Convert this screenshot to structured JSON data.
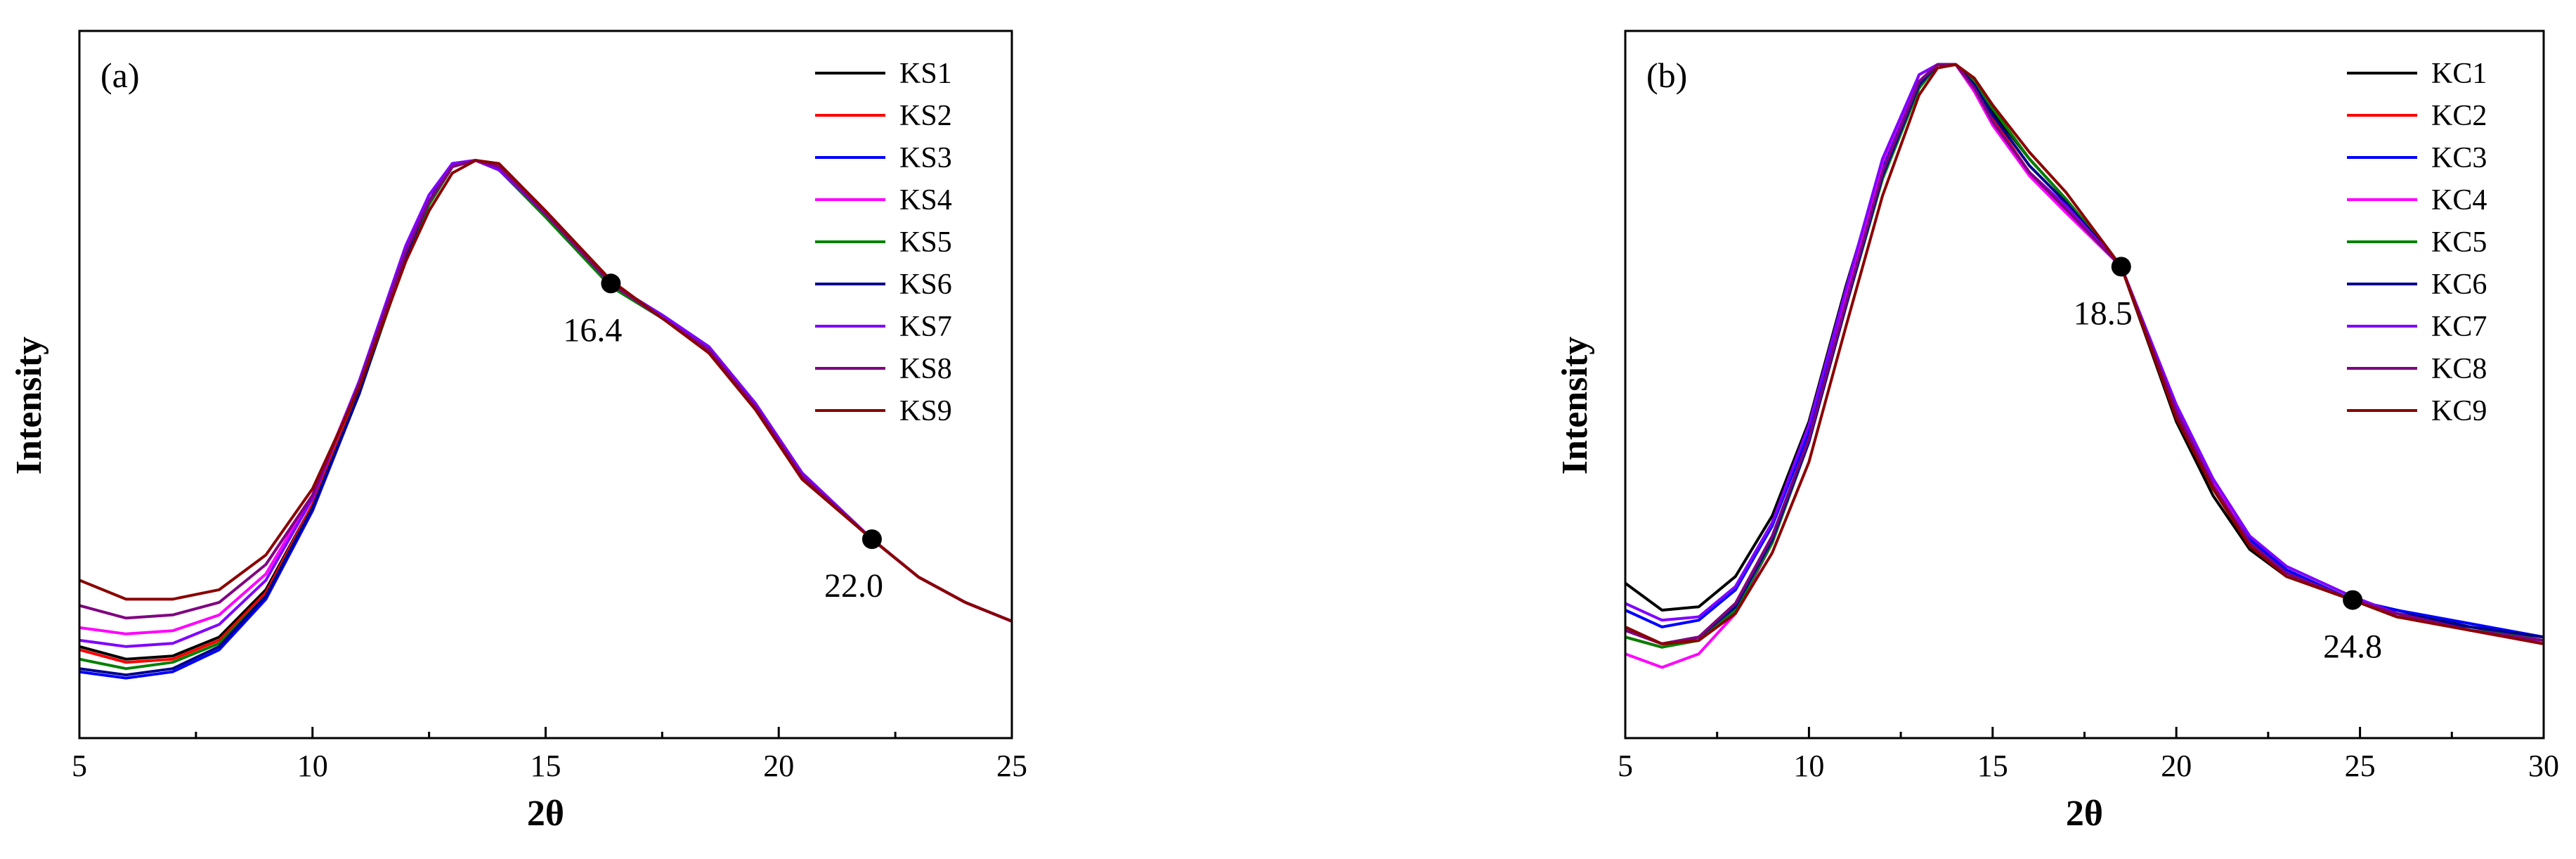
{
  "chart_data": [
    {
      "type": "line",
      "panel_label": "(a)",
      "xlabel": "2θ",
      "ylabel": "Intensity",
      "xlim": [
        5,
        25
      ],
      "ylim": [
        0,
        1
      ],
      "xticks": [
        5,
        10,
        15,
        20,
        25
      ],
      "y_tick_labels": "none",
      "grid": false,
      "legend_position": "top-right",
      "series": [
        {
          "name": "KS1",
          "color": "#000000",
          "x": [
            5,
            6,
            7,
            8,
            9,
            10,
            11,
            12,
            12.5,
            13,
            13.5,
            14,
            15,
            16.4,
            17.5,
            18.5,
            19.5,
            20.5,
            22,
            23,
            24,
            25
          ],
          "y": [
            0.145,
            0.125,
            0.13,
            0.16,
            0.235,
            0.37,
            0.55,
            0.76,
            0.845,
            0.905,
            0.915,
            0.9,
            0.83,
            0.72,
            0.665,
            0.615,
            0.525,
            0.415,
            0.315,
            0.255,
            0.215,
            0.185
          ]
        },
        {
          "name": "KS2",
          "color": "#ff0000",
          "x": [
            5,
            6,
            7,
            8,
            9,
            10,
            11,
            12,
            12.5,
            13,
            13.5,
            14,
            15,
            16.4,
            17.5,
            18.5,
            19.5,
            20.5,
            22,
            23,
            24,
            25
          ],
          "y": [
            0.14,
            0.12,
            0.125,
            0.155,
            0.23,
            0.37,
            0.55,
            0.76,
            0.845,
            0.905,
            0.915,
            0.9,
            0.83,
            0.72,
            0.665,
            0.615,
            0.525,
            0.415,
            0.315,
            0.255,
            0.215,
            0.185
          ]
        },
        {
          "name": "KS3",
          "color": "#0000ff",
          "x": [
            5,
            6,
            7,
            8,
            9,
            10,
            11,
            12,
            12.5,
            13,
            13.5,
            14,
            15,
            16.4,
            17.5,
            18.5,
            19.5,
            20.5,
            22,
            23,
            24,
            25
          ],
          "y": [
            0.105,
            0.095,
            0.105,
            0.14,
            0.22,
            0.36,
            0.545,
            0.765,
            0.85,
            0.91,
            0.915,
            0.9,
            0.83,
            0.72,
            0.67,
            0.62,
            0.53,
            0.42,
            0.315,
            0.255,
            0.215,
            0.185
          ]
        },
        {
          "name": "KS4",
          "color": "#ff00ff",
          "x": [
            5,
            6,
            7,
            8,
            9,
            10,
            11,
            12,
            12.5,
            13,
            13.5,
            14,
            15,
            16.4,
            17.5,
            18.5,
            19.5,
            20.5,
            22,
            23,
            24,
            25
          ],
          "y": [
            0.175,
            0.165,
            0.17,
            0.195,
            0.26,
            0.385,
            0.565,
            0.78,
            0.86,
            0.91,
            0.915,
            0.9,
            0.83,
            0.72,
            0.665,
            0.615,
            0.525,
            0.415,
            0.315,
            0.255,
            0.215,
            0.185
          ]
        },
        {
          "name": "KS5",
          "color": "#008000",
          "x": [
            5,
            6,
            7,
            8,
            9,
            10,
            11,
            12,
            12.5,
            13,
            13.5,
            14,
            15,
            16.4,
            17.5,
            18.5,
            19.5,
            20.5,
            22,
            23,
            24,
            25
          ],
          "y": [
            0.125,
            0.11,
            0.12,
            0.15,
            0.225,
            0.365,
            0.545,
            0.76,
            0.845,
            0.905,
            0.915,
            0.9,
            0.825,
            0.715,
            0.665,
            0.615,
            0.525,
            0.415,
            0.315,
            0.255,
            0.215,
            0.185
          ]
        },
        {
          "name": "KS6",
          "color": "#00008b",
          "x": [
            5,
            6,
            7,
            8,
            9,
            10,
            11,
            12,
            12.5,
            13,
            13.5,
            14,
            15,
            16.4,
            17.5,
            18.5,
            19.5,
            20.5,
            22,
            23,
            24,
            25
          ],
          "y": [
            0.11,
            0.1,
            0.11,
            0.145,
            0.225,
            0.365,
            0.545,
            0.765,
            0.85,
            0.91,
            0.915,
            0.9,
            0.83,
            0.72,
            0.67,
            0.62,
            0.53,
            0.42,
            0.315,
            0.255,
            0.215,
            0.185
          ]
        },
        {
          "name": "KS7",
          "color": "#8000ff",
          "x": [
            5,
            6,
            7,
            8,
            9,
            10,
            11,
            12,
            12.5,
            13,
            13.5,
            14,
            15,
            16.4,
            17.5,
            18.5,
            19.5,
            20.5,
            22,
            23,
            24,
            25
          ],
          "y": [
            0.155,
            0.145,
            0.15,
            0.18,
            0.25,
            0.38,
            0.565,
            0.78,
            0.86,
            0.91,
            0.915,
            0.9,
            0.83,
            0.72,
            0.67,
            0.62,
            0.53,
            0.42,
            0.315,
            0.255,
            0.215,
            0.185
          ]
        },
        {
          "name": "KS8",
          "color": "#800080",
          "x": [
            5,
            6,
            7,
            8,
            9,
            10,
            11,
            12,
            12.5,
            13,
            13.5,
            14,
            15,
            16.4,
            17.5,
            18.5,
            19.5,
            20.5,
            22,
            23,
            24,
            25
          ],
          "y": [
            0.21,
            0.19,
            0.195,
            0.215,
            0.275,
            0.385,
            0.56,
            0.77,
            0.85,
            0.905,
            0.915,
            0.905,
            0.83,
            0.72,
            0.665,
            0.615,
            0.525,
            0.415,
            0.315,
            0.255,
            0.215,
            0.185
          ]
        },
        {
          "name": "KS9",
          "color": "#8b0000",
          "x": [
            5,
            6,
            7,
            8,
            9,
            10,
            11,
            12,
            12.5,
            13,
            13.5,
            14,
            15,
            16.4,
            17.5,
            18.5,
            19.5,
            20.5,
            22,
            23,
            24,
            25
          ],
          "y": [
            0.25,
            0.22,
            0.22,
            0.235,
            0.29,
            0.395,
            0.555,
            0.755,
            0.835,
            0.895,
            0.915,
            0.91,
            0.835,
            0.725,
            0.665,
            0.61,
            0.52,
            0.41,
            0.315,
            0.255,
            0.215,
            0.185
          ]
        }
      ],
      "markers": [
        {
          "x": 16.4,
          "y": 0.72,
          "label": "16.4",
          "label_anchor": "below-left"
        },
        {
          "x": 22.0,
          "y": 0.315,
          "label": "22.0",
          "label_anchor": "below-left"
        }
      ]
    },
    {
      "type": "line",
      "panel_label": "(b)",
      "xlabel": "2θ",
      "ylabel": "Intensity",
      "xlim": [
        5,
        30
      ],
      "ylim": [
        0,
        1
      ],
      "xticks": [
        5,
        10,
        15,
        20,
        25,
        30
      ],
      "y_tick_labels": "none",
      "grid": false,
      "legend_position": "top-right",
      "series": [
        {
          "name": "KC1",
          "color": "#000000",
          "x": [
            5,
            6,
            7,
            8,
            9,
            10,
            11,
            12,
            13,
            13.5,
            14,
            14.5,
            15,
            16,
            17,
            18.5,
            20,
            21,
            22,
            23,
            24.8,
            26,
            28,
            30
          ],
          "y": [
            0.23,
            0.19,
            0.195,
            0.24,
            0.33,
            0.47,
            0.67,
            0.85,
            0.975,
            1.0,
            1.0,
            0.97,
            0.93,
            0.86,
            0.8,
            0.7,
            0.47,
            0.36,
            0.28,
            0.24,
            0.205,
            0.19,
            0.165,
            0.15
          ]
        },
        {
          "name": "KC2",
          "color": "#ff0000",
          "x": [
            5,
            6,
            7,
            8,
            9,
            10,
            11,
            12,
            13,
            13.5,
            14,
            14.5,
            15,
            16,
            17,
            18.5,
            20,
            21,
            22,
            23,
            24.8,
            26,
            28,
            30
          ],
          "y": [
            0.15,
            0.135,
            0.15,
            0.2,
            0.3,
            0.44,
            0.64,
            0.84,
            0.975,
            1.0,
            1.0,
            0.97,
            0.92,
            0.84,
            0.79,
            0.7,
            0.48,
            0.37,
            0.285,
            0.245,
            0.205,
            0.18,
            0.16,
            0.14
          ]
        },
        {
          "name": "KC3",
          "color": "#0000ff",
          "x": [
            5,
            6,
            7,
            8,
            9,
            10,
            11,
            12,
            13,
            13.5,
            14,
            14.5,
            15,
            16,
            17,
            18.5,
            20,
            21,
            22,
            23,
            24.8,
            26,
            28,
            30
          ],
          "y": [
            0.19,
            0.165,
            0.175,
            0.22,
            0.315,
            0.455,
            0.655,
            0.845,
            0.975,
            1.0,
            1.0,
            0.965,
            0.915,
            0.84,
            0.785,
            0.7,
            0.49,
            0.38,
            0.295,
            0.25,
            0.205,
            0.19,
            0.17,
            0.15
          ]
        },
        {
          "name": "KC4",
          "color": "#ff00ff",
          "x": [
            5,
            6,
            7,
            8,
            9,
            10,
            11,
            12,
            13,
            13.5,
            14,
            14.5,
            15,
            16,
            17,
            18.5,
            20,
            21,
            22,
            23,
            24.8,
            26,
            28,
            30
          ],
          "y": [
            0.125,
            0.105,
            0.125,
            0.185,
            0.29,
            0.44,
            0.65,
            0.855,
            0.985,
            1.0,
            1.0,
            0.96,
            0.91,
            0.835,
            0.78,
            0.7,
            0.49,
            0.38,
            0.29,
            0.245,
            0.205,
            0.185,
            0.16,
            0.14
          ]
        },
        {
          "name": "KC5",
          "color": "#008000",
          "x": [
            5,
            6,
            7,
            8,
            9,
            10,
            11,
            12,
            13,
            13.5,
            14,
            14.5,
            15,
            16,
            17,
            18.5,
            20,
            21,
            22,
            23,
            24.8,
            26,
            28,
            30
          ],
          "y": [
            0.15,
            0.135,
            0.145,
            0.19,
            0.29,
            0.44,
            0.64,
            0.83,
            0.965,
            1.0,
            1.0,
            0.975,
            0.935,
            0.86,
            0.8,
            0.7,
            0.48,
            0.37,
            0.29,
            0.245,
            0.205,
            0.18,
            0.165,
            0.145
          ]
        },
        {
          "name": "KC6",
          "color": "#00008b",
          "x": [
            5,
            6,
            7,
            8,
            9,
            10,
            11,
            12,
            13,
            13.5,
            14,
            14.5,
            15,
            16,
            17,
            18.5,
            20,
            21,
            22,
            23,
            24.8,
            26,
            28,
            30
          ],
          "y": [
            0.16,
            0.14,
            0.15,
            0.195,
            0.295,
            0.44,
            0.64,
            0.835,
            0.97,
            1.0,
            1.0,
            0.97,
            0.925,
            0.85,
            0.795,
            0.7,
            0.485,
            0.375,
            0.29,
            0.245,
            0.205,
            0.185,
            0.165,
            0.15
          ]
        },
        {
          "name": "KC7",
          "color": "#8000ff",
          "x": [
            5,
            6,
            7,
            8,
            9,
            10,
            11,
            12,
            13,
            13.5,
            14,
            14.5,
            15,
            16,
            17,
            18.5,
            20,
            21,
            22,
            23,
            24.8,
            26,
            28,
            30
          ],
          "y": [
            0.2,
            0.175,
            0.18,
            0.225,
            0.32,
            0.465,
            0.665,
            0.86,
            0.985,
            1.0,
            1.0,
            0.965,
            0.915,
            0.84,
            0.79,
            0.7,
            0.495,
            0.385,
            0.3,
            0.255,
            0.21,
            0.185,
            0.16,
            0.145
          ]
        },
        {
          "name": "KC8",
          "color": "#800080",
          "x": [
            5,
            6,
            7,
            8,
            9,
            10,
            11,
            12,
            13,
            13.5,
            14,
            14.5,
            15,
            16,
            17,
            18.5,
            20,
            21,
            22,
            23,
            24.8,
            26,
            28,
            30
          ],
          "y": [
            0.16,
            0.14,
            0.15,
            0.2,
            0.3,
            0.445,
            0.645,
            0.84,
            0.975,
            1.0,
            1.0,
            0.965,
            0.915,
            0.84,
            0.785,
            0.7,
            0.485,
            0.375,
            0.29,
            0.245,
            0.205,
            0.185,
            0.16,
            0.145
          ]
        },
        {
          "name": "KC9",
          "color": "#8b0000",
          "x": [
            5,
            6,
            7,
            8,
            9,
            10,
            11,
            12,
            13,
            13.5,
            14,
            14.5,
            15,
            16,
            17,
            18.5,
            20,
            21,
            22,
            23,
            24.8,
            26,
            28,
            30
          ],
          "y": [
            0.165,
            0.14,
            0.145,
            0.185,
            0.275,
            0.41,
            0.61,
            0.805,
            0.955,
            0.995,
            1.0,
            0.98,
            0.94,
            0.87,
            0.81,
            0.7,
            0.475,
            0.37,
            0.285,
            0.24,
            0.205,
            0.18,
            0.16,
            0.14
          ]
        }
      ],
      "markers": [
        {
          "x": 18.5,
          "y": 0.7,
          "label": "18.5",
          "label_anchor": "below-left"
        },
        {
          "x": 24.8,
          "y": 0.205,
          "label": "24.8",
          "label_anchor": "below"
        }
      ]
    }
  ]
}
